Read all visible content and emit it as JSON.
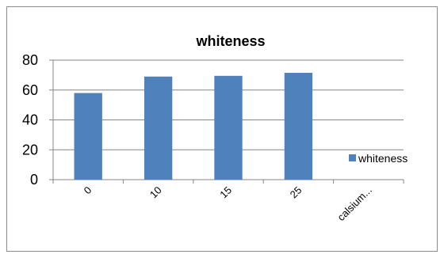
{
  "chart_data": {
    "type": "bar",
    "title": "whiteness",
    "categories": [
      "0",
      "10",
      "15",
      "25",
      "calsium..."
    ],
    "series": [
      {
        "name": "whiteness",
        "values": [
          58,
          69,
          69.5,
          71.5,
          0
        ],
        "color": "#4f81bd"
      }
    ],
    "ylim": [
      0,
      80
    ],
    "yticks": [
      "0",
      "20",
      "40",
      "60",
      "80"
    ],
    "grid": true,
    "legend_position": "right",
    "xlabel": "",
    "ylabel": ""
  }
}
